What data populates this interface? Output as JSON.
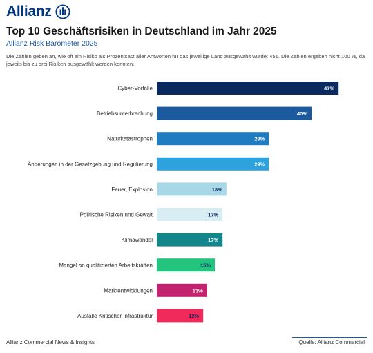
{
  "header": {
    "logo_text": "Allianz",
    "title": "Top 10 Geschäftsrisiken in Deutschland im Jahr 2025",
    "subtitle": "Allianz Risk Barometer 2025",
    "note": "Die Zahlen geben an, wie oft ein Risiko als Prozentsatz aller Antworten für das jeweilige Land ausgewählt wurde: 451. Die Zahlen ergeben nicht 100 %, da jeweils bis zu drei Risiken ausgewählt werden konnten."
  },
  "footer": {
    "left": "Allianz Commercial News & Insights",
    "right": "Quelle: Allianz Commercial"
  },
  "chart_data": {
    "type": "bar",
    "orientation": "horizontal",
    "categories": [
      "Cyber-Vorfälle",
      "Betriebsunterbrechung",
      "Naturkatastrophen",
      "Änderungen in der Gesetzgebung und Regulierung",
      "Feuer, Explosion",
      "Politische Risiken und Gewalt",
      "Klimawandel",
      "Mangel an qualifizierten Arbeitskräften",
      "Marktentwicklungen",
      "Ausfälle Kritischer Infrastruktur"
    ],
    "values": [
      47,
      40,
      29,
      29,
      18,
      17,
      17,
      15,
      13,
      12
    ],
    "value_labels": [
      "47%",
      "40%",
      "29%",
      "29%",
      "18%",
      "17%",
      "17%",
      "15%",
      "13%",
      "12%"
    ],
    "colors": [
      "#0a2a5e",
      "#1c5a9e",
      "#1f7cc0",
      "#2da2dc",
      "#a8d8e6",
      "#d8eef4",
      "#12868a",
      "#22c47e",
      "#c2226e",
      "#f02a5a"
    ],
    "label_colors": [
      "#ffffff",
      "#ffffff",
      "#ffffff",
      "#ffffff",
      "#0a2a5e",
      "#0a2a5e",
      "#ffffff",
      "#0a2a5e",
      "#ffffff",
      "#0a2a5e"
    ],
    "unit": "%",
    "grid": false,
    "legend": "none"
  }
}
